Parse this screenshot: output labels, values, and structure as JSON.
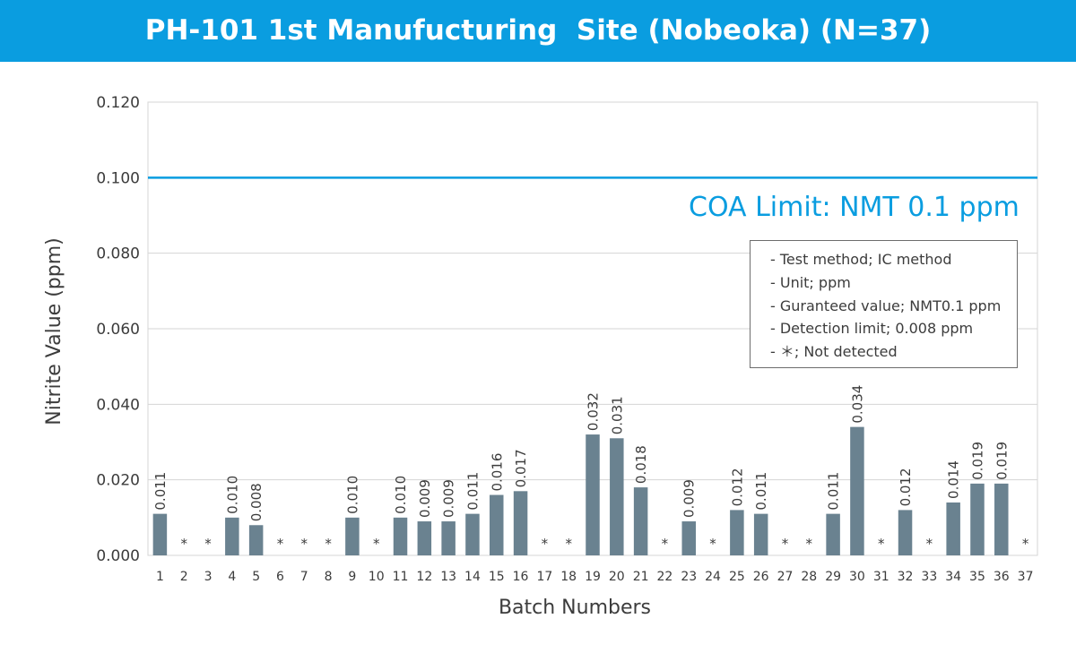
{
  "title": "PH-101 1st Manufucturing  Site (Nobeoka) (N=37)",
  "colors": {
    "banner": "#0a9de0",
    "bar": "#6a8290",
    "limit_line": "#0a9de0",
    "grid": "#d5d5d5",
    "text": "#3c3c3c"
  },
  "chart_data": {
    "type": "bar",
    "xlabel": "Batch Numbers",
    "ylabel": "Nitrite Value (ppm)",
    "ylim": [
      0,
      0.12
    ],
    "yticks": [
      "0.000",
      "0.020",
      "0.040",
      "0.060",
      "0.080",
      "0.100",
      "0.120"
    ],
    "grid": "horizontal",
    "categories": [
      "1",
      "2",
      "3",
      "4",
      "5",
      "6",
      "7",
      "8",
      "9",
      "10",
      "11",
      "12",
      "13",
      "14",
      "15",
      "16",
      "17",
      "18",
      "19",
      "20",
      "21",
      "22",
      "23",
      "24",
      "25",
      "26",
      "27",
      "28",
      "29",
      "30",
      "31",
      "32",
      "33",
      "34",
      "35",
      "36",
      "37"
    ],
    "values": [
      0.011,
      null,
      null,
      0.01,
      0.008,
      null,
      null,
      null,
      0.01,
      null,
      0.01,
      0.009,
      0.009,
      0.011,
      0.016,
      0.017,
      null,
      null,
      0.032,
      0.031,
      0.018,
      null,
      0.009,
      null,
      0.012,
      0.011,
      null,
      null,
      0.011,
      0.034,
      null,
      0.012,
      null,
      0.014,
      0.019,
      0.019,
      null
    ],
    "data_labels": [
      "0.011",
      "*",
      "*",
      "0.010",
      "0.008",
      "*",
      "*",
      "*",
      "0.010",
      "*",
      "0.010",
      "0.009",
      "0.009",
      "0.011",
      "0.016",
      "0.017",
      "*",
      "*",
      "0.032",
      "0.031",
      "0.018",
      "*",
      "0.009",
      "*",
      "0.012",
      "0.011",
      "*",
      "*",
      "0.011",
      "0.034",
      "*",
      "0.012",
      "*",
      "0.014",
      "0.019",
      "0.019",
      "*"
    ],
    "limit_line": {
      "value": 0.1,
      "label": "COA Limit: NMT 0.1 ppm"
    },
    "legend_placement": "right, below limit line",
    "legend": [
      "- Test method; IC method",
      "- Unit; ppm",
      "- Guranteed value; NMT0.1 ppm",
      "- Detection limit; 0.008 ppm",
      "- ＊; Not detected"
    ]
  }
}
